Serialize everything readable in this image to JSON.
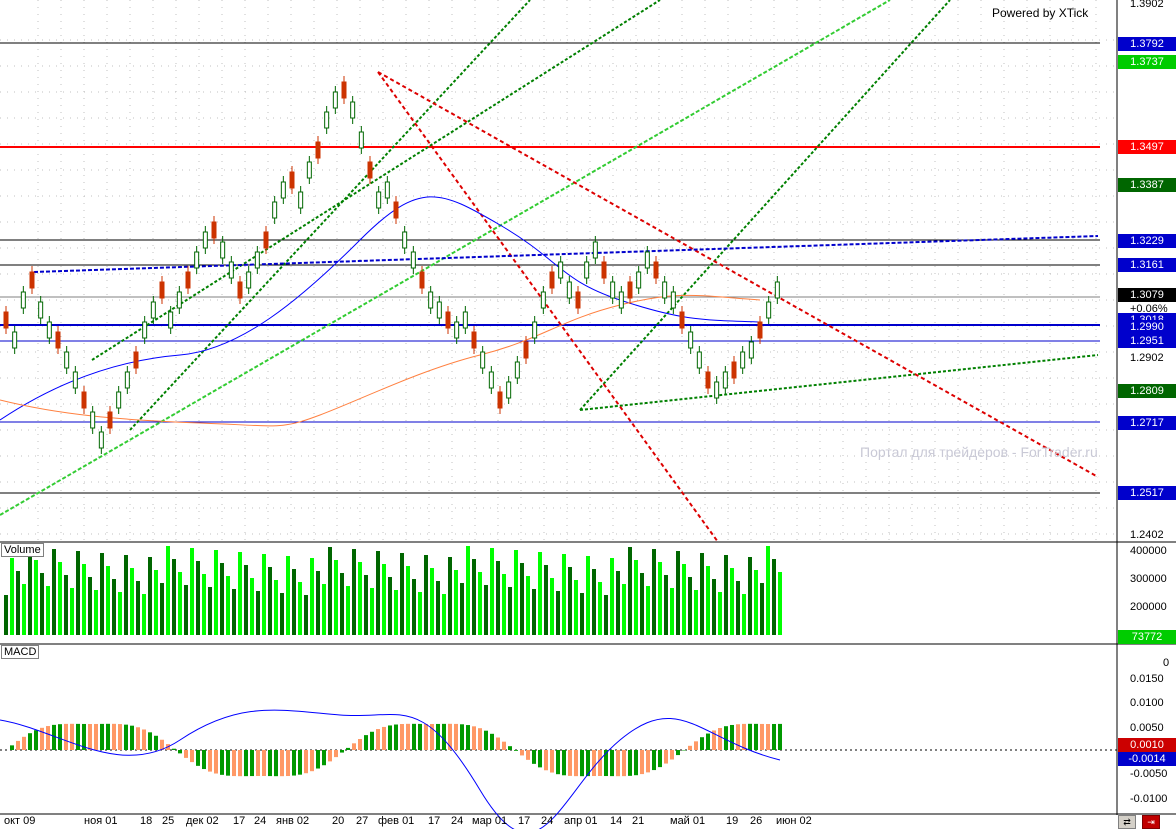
{
  "header": {
    "powered_by": "Powered by XTick"
  },
  "watermark": "Портал для трейдеров - ForTrader.ru",
  "panes": {
    "volume_label": "Volume",
    "macd_label": "MACD"
  },
  "price_axis": {
    "ticks": [
      "1.3902",
      "1.2902",
      "1.2402"
    ],
    "boxes": [
      {
        "text": "1.3792",
        "color": "#0000cc"
      },
      {
        "text": "1.3737",
        "color": "#00cc00"
      },
      {
        "text": "1.3497",
        "color": "#ff0000"
      },
      {
        "text": "1.3387",
        "color": "#006600"
      },
      {
        "text": "1.3229",
        "color": "#0000cc"
      },
      {
        "text": "1.3161",
        "color": "#0000cc"
      },
      {
        "text": "1.3079",
        "color": "#000000"
      },
      {
        "text": "1.3018",
        "color": "#0000cc"
      },
      {
        "text": "1.2990",
        "color": "#0000cc"
      },
      {
        "text": "1.2951",
        "color": "#0000cc"
      },
      {
        "text": "1.2809",
        "color": "#006600"
      },
      {
        "text": "1.2717",
        "color": "#0000cc"
      },
      {
        "text": "1.2517",
        "color": "#0000cc"
      }
    ],
    "change_label": "+0.06%"
  },
  "volume_axis": {
    "ticks": [
      "400000",
      "300000",
      "200000",
      "0"
    ],
    "current_box": {
      "text": "73772",
      "color": "#00cc00"
    }
  },
  "macd_axis": {
    "ticks": [
      "0.0150",
      "0.0100",
      "0.0050",
      "-0.0050",
      "-0.0100"
    ],
    "boxes": [
      {
        "text": "0.0010",
        "color": "#cc0000"
      },
      {
        "text": "-0.0014",
        "color": "#0000cc"
      }
    ]
  },
  "date_axis": [
    "окт 09",
    "ноя 01",
    "18",
    "25",
    "дек 02",
    "17",
    "24",
    "янв 02",
    "20",
    "27",
    "фев 01",
    "17",
    "24",
    "мар 01",
    "17",
    "24",
    "апр 01",
    "14",
    "21",
    "май 01",
    "19",
    "26",
    "июн 02"
  ],
  "toolbar": {
    "scroll_icon": "scroll-icon",
    "exit_icon": "exit-icon"
  },
  "colors": {
    "bull_candle": "#006600",
    "bear_candle": "#cc3300",
    "volume_bright": "#00ff00",
    "volume_dark": "#006600",
    "macd_pos": "#009900",
    "macd_neg": "#ff9966",
    "resistance_red": "#ff0000",
    "horizontal_blue": "#0000cc",
    "trend_green_dark": "#008000",
    "trend_green_light": "#33cc33",
    "trend_red_dash": "#dd0000",
    "ma_blue": "#0000ff",
    "ma_orange": "#ff8040"
  }
}
